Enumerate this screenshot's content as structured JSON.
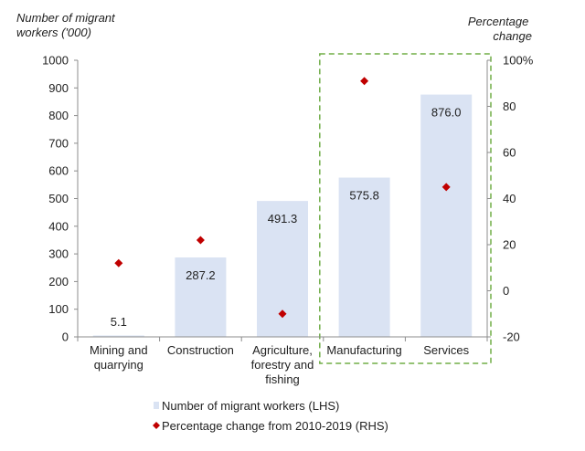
{
  "chart_data": {
    "type": "bar",
    "categories": [
      [
        "Mining and",
        "quarrying"
      ],
      [
        "Construction"
      ],
      [
        "Agriculture,",
        "forestry and",
        "fishing"
      ],
      [
        "Manufacturing"
      ],
      [
        "Services"
      ]
    ],
    "series": [
      {
        "name": "Number of migrant workers (LHS)",
        "type": "bar",
        "axis": "left",
        "color": "#dae3f3",
        "values": [
          5.1,
          287.2,
          491.3,
          575.8,
          876.0
        ],
        "labels": [
          "5.1",
          "287.2",
          "491.3",
          "575.8",
          "876.0"
        ]
      },
      {
        "name": "Percentage change from 2010-2019 (RHS)",
        "type": "scatter",
        "axis": "right",
        "color": "#c00000",
        "values": [
          12,
          22,
          -10,
          91,
          45
        ]
      }
    ],
    "left_axis": {
      "title": [
        "Number of migrant",
        "workers ('000)"
      ],
      "min": 0,
      "max": 1000,
      "step": 100,
      "ticks": [
        "0",
        "100",
        "200",
        "300",
        "400",
        "500",
        "600",
        "700",
        "800",
        "900",
        "1000"
      ]
    },
    "right_axis": {
      "title": [
        "Percentage",
        "change"
      ],
      "min": -20,
      "max": 100,
      "step": 20,
      "ticks": [
        "-20",
        "0",
        "20",
        "40",
        "60",
        "80",
        "100%"
      ]
    },
    "highlight_box": {
      "categories": [
        3,
        4
      ],
      "color": "#70ad47",
      "style": "dashed"
    },
    "grid": false,
    "legend_position": "bottom"
  }
}
